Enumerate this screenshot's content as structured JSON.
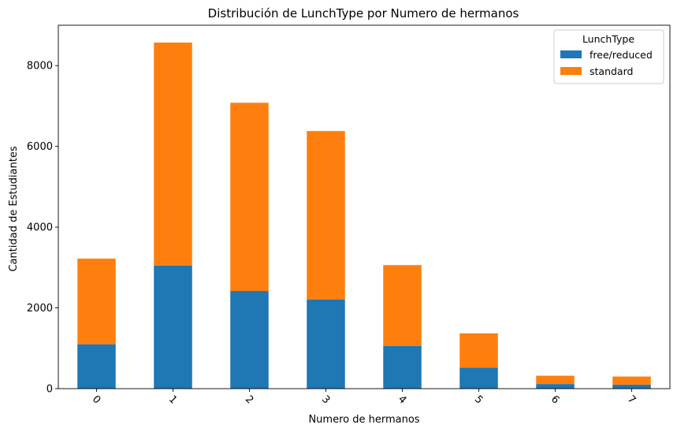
{
  "chart_data": {
    "type": "bar",
    "stacked": true,
    "title": "Distribución de LunchType por Numero de hermanos",
    "xlabel": "Numero de hermanos",
    "ylabel": "Cantidad de Estudiantes",
    "categories": [
      "0",
      "1",
      "2",
      "3",
      "4",
      "5",
      "6",
      "7"
    ],
    "ylim": [
      0,
      9000
    ],
    "yticks": [
      0,
      2000,
      4000,
      6000,
      8000
    ],
    "grid": false,
    "legend": {
      "title": "LunchType",
      "placement": "top-right"
    },
    "series": [
      {
        "name": "free/reduced",
        "color": "#1f77b4",
        "values": [
          1100,
          3050,
          2420,
          2210,
          1060,
          520,
          115,
          100
        ]
      },
      {
        "name": "standard",
        "color": "#ff7f0e",
        "values": [
          2120,
          5520,
          4660,
          4170,
          2000,
          850,
          205,
          200
        ]
      }
    ]
  }
}
